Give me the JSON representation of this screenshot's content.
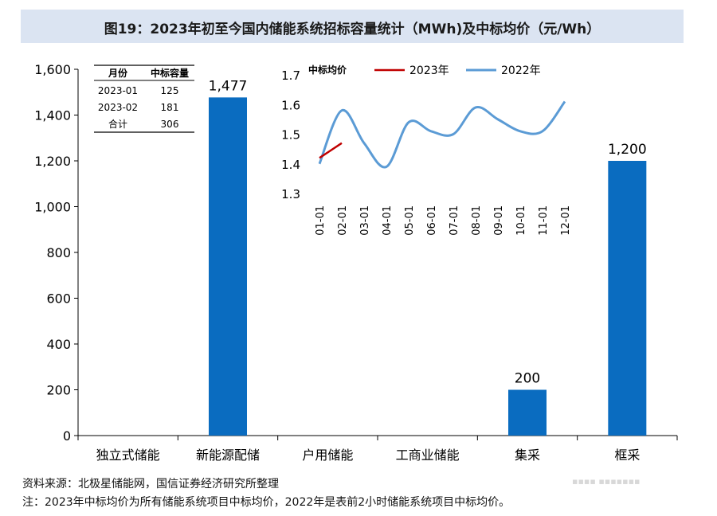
{
  "title": "图19：2023年初至今国内储能系统招标容量统计（MWh)及中标均价（元/Wh）",
  "footer": {
    "source": "资料来源：北极星储能网，国信证券经济研究所整理",
    "note": "注：2023年中标均价为所有储能系统项目中标均价，2022年是表前2小时储能系统项目中标均价。"
  },
  "colors": {
    "bar": "#0a6cc0",
    "series_2023": "#c00000",
    "series_2022": "#5b9bd5",
    "title_bg": "#dbe4f2"
  },
  "chart_data": [
    {
      "type": "bar",
      "categories": [
        "独立式储能",
        "新能源配储",
        "户用储能",
        "工商业储能",
        "集采",
        "框采"
      ],
      "values": [
        null,
        1477,
        null,
        null,
        200,
        1200
      ],
      "data_labels": [
        "",
        "1,477",
        "",
        "",
        "200",
        "1,200"
      ],
      "ylim": [
        0,
        1600
      ],
      "yticks": [
        0,
        200,
        400,
        600,
        800,
        1000,
        1200,
        1400,
        1600
      ],
      "ytick_labels": [
        "0",
        "200",
        "400",
        "600",
        "800",
        "1,000",
        "1,200",
        "1,400",
        "1,600"
      ],
      "grid": false
    },
    {
      "type": "line",
      "title": "中标均价",
      "x": [
        "01-01",
        "02-01",
        "03-01",
        "04-01",
        "05-01",
        "06-01",
        "07-01",
        "08-01",
        "09-01",
        "10-01",
        "11-01",
        "12-01"
      ],
      "series": [
        {
          "name": "2023年",
          "values": [
            1.42,
            1.47,
            null,
            null,
            null,
            null,
            null,
            null,
            null,
            null,
            null,
            null
          ]
        },
        {
          "name": "2022年",
          "values": [
            1.4,
            1.58,
            1.47,
            1.39,
            1.54,
            1.51,
            1.5,
            1.59,
            1.55,
            1.51,
            1.51,
            1.61
          ]
        }
      ],
      "ylim": [
        1.3,
        1.7
      ],
      "yticks": [
        1.3,
        1.4,
        1.5,
        1.6,
        1.7
      ],
      "legend": "top",
      "grid": false
    },
    {
      "type": "table",
      "columns": [
        "月份",
        "中标容量"
      ],
      "rows": [
        [
          "2023-01",
          "125"
        ],
        [
          "2023-02",
          "181"
        ],
        [
          "合计",
          "306"
        ]
      ]
    }
  ]
}
